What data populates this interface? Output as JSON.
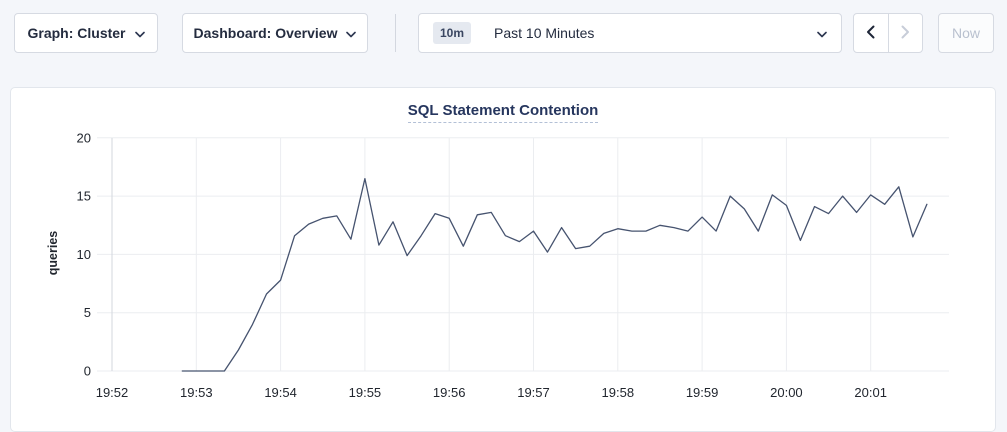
{
  "toolbar": {
    "graph_dropdown": "Graph: Cluster",
    "dashboard_dropdown": "Dashboard: Overview",
    "time_window_badge": "10m",
    "time_window_label": "Past 10 Minutes",
    "now_label": "Now"
  },
  "chart_data": {
    "type": "line",
    "title": "SQL Statement Contention",
    "xlabel": "",
    "ylabel": "queries",
    "ylim": [
      0,
      20
    ],
    "yticks": [
      0,
      5,
      10,
      15,
      20
    ],
    "x_tick_labels": [
      "19:52",
      "19:53",
      "19:54",
      "19:55",
      "19:56",
      "19:57",
      "19:58",
      "19:59",
      "20:00",
      "20:01"
    ],
    "x_base_time": "19:52",
    "grid": true,
    "legend": "none",
    "line_color": "#46536f",
    "grid_color": "#ebedf0",
    "axis_color": "#d3d7de",
    "tick_text_color": "#21262e",
    "series": [
      {
        "name": "queries",
        "x_offsets_sec": [
          50,
          60,
          70,
          80,
          90,
          100,
          110,
          120,
          130,
          140,
          150,
          160,
          170,
          180,
          190,
          200,
          210,
          220,
          230,
          240,
          250,
          260,
          270,
          280,
          290,
          300,
          310,
          320,
          330,
          340,
          350,
          360,
          370,
          380,
          390,
          400,
          410,
          420,
          430,
          440,
          450,
          460,
          470,
          480,
          490,
          500,
          510,
          520,
          530,
          540,
          550,
          560,
          570,
          580
        ],
        "values": [
          0,
          0,
          0,
          0,
          1.8,
          4,
          6.6,
          7.8,
          11.6,
          12.6,
          13.1,
          13.3,
          11.3,
          16.5,
          10.8,
          12.8,
          9.9,
          11.6,
          13.5,
          13.1,
          10.7,
          13.4,
          13.6,
          11.6,
          11.1,
          12,
          10.2,
          12.3,
          10.5,
          10.7,
          11.8,
          12.2,
          12,
          12,
          12.5,
          12.3,
          12,
          13.2,
          12,
          15,
          13.9,
          12,
          15.1,
          14.2,
          11.2,
          14.1,
          13.5,
          15,
          13.6,
          15.1,
          14.3,
          15.8,
          11.5,
          14.3
        ]
      }
    ]
  }
}
